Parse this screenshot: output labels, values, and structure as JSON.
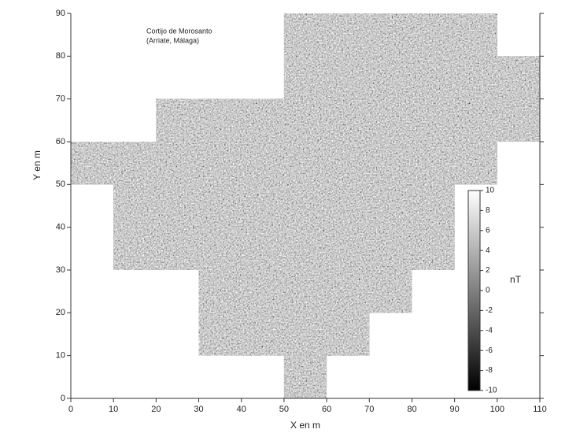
{
  "chart_data": {
    "type": "magnetic-map",
    "title": "Cortijo de Morosanto",
    "subtitle": "(Arriate, Málaga)",
    "x_label": "X en m",
    "y_label": "Y en m",
    "xlim": [
      0,
      110
    ],
    "ylim": [
      0,
      90
    ],
    "xticks": [
      0,
      10,
      20,
      30,
      40,
      50,
      60,
      70,
      80,
      90,
      100,
      110
    ],
    "yticks": [
      0,
      10,
      20,
      30,
      40,
      50,
      60,
      70,
      80,
      90
    ],
    "survey_area": {
      "x": [
        50,
        60,
        60,
        70,
        70,
        80,
        80,
        90,
        90,
        100,
        100,
        110,
        110,
        100,
        100,
        50,
        50,
        20,
        20,
        0,
        0,
        10,
        10,
        30,
        30,
        50
      ],
      "y": [
        0,
        0,
        10,
        10,
        20,
        20,
        30,
        30,
        50,
        50,
        60,
        60,
        80,
        80,
        90,
        90,
        70,
        70,
        60,
        60,
        50,
        50,
        30,
        30,
        10,
        10
      ]
    },
    "colorbar": {
      "label": "nT",
      "lim": [
        -10,
        10
      ],
      "ticks": [
        -10,
        -8,
        -6,
        -4,
        -2,
        0,
        2,
        4,
        6,
        8,
        10
      ],
      "colors": [
        "#000000",
        "#ffffff"
      ]
    }
  }
}
